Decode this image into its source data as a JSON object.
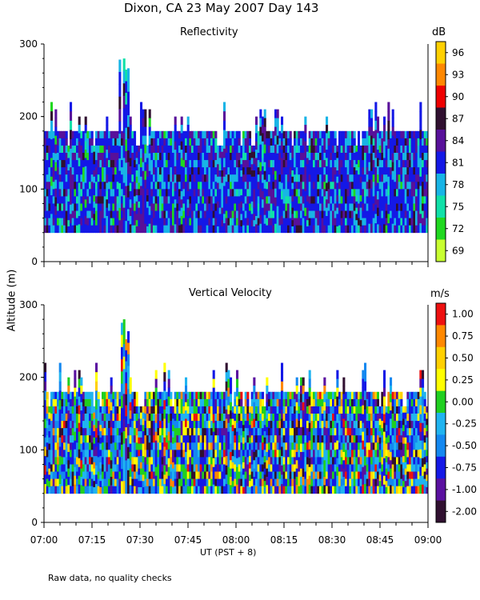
{
  "header": {
    "title": "Dixon, CA 23 May 2007  Day 143"
  },
  "footer": {
    "note": "Raw data, no quality checks"
  },
  "colors": {
    "background": "#ffffff",
    "axis": "#000000"
  },
  "chart_data": [
    {
      "type": "heatmap",
      "title": "Reflectivity",
      "xlabel": "UT  (PST + 8)",
      "ylabel": "Altitude (m)",
      "x_range": [
        "07:00",
        "09:00"
      ],
      "x_tick_labels": [
        "07:00",
        "07:15",
        "07:30",
        "07:45",
        "08:00",
        "08:15",
        "08:30",
        "08:45",
        "09:00"
      ],
      "ylim": [
        0,
        300
      ],
      "y_tick_labels": [
        "0",
        "100",
        "200",
        "300"
      ],
      "colorbar": {
        "unit": "dB",
        "labels": [
          "96",
          "93",
          "90",
          "87",
          "84",
          "81",
          "78",
          "75",
          "72",
          "69"
        ],
        "colors": [
          "#ffd000",
          "#ff8800",
          "#ee0000",
          "#301030",
          "#58109a",
          "#1418e6",
          "#18b4e6",
          "#10e0a8",
          "#20d820",
          "#c8ff30"
        ]
      },
      "echo_base_altitude_m": 40,
      "echo_top_typical_m": 180,
      "echo_top_max_m": 280,
      "dominant_values_db": [
        78,
        81,
        84
      ]
    },
    {
      "type": "heatmap",
      "title": "Vertical Velocity",
      "xlabel": "UT  (PST + 8)",
      "ylabel": "Altitude (m)",
      "x_range": [
        "07:00",
        "09:00"
      ],
      "x_tick_labels": [
        "07:00",
        "07:15",
        "07:30",
        "07:45",
        "08:00",
        "08:15",
        "08:30",
        "08:45",
        "09:00"
      ],
      "ylim": [
        0,
        300
      ],
      "y_tick_labels": [
        "0",
        "100",
        "200",
        "300"
      ],
      "colorbar": {
        "unit": "m/s",
        "labels": [
          "1.00",
          "0.75",
          "0.50",
          "0.25",
          "0.00",
          "-0.25",
          "-0.50",
          "-0.75",
          "-1.00",
          "-2.00"
        ],
        "colors": [
          "#ee1010",
          "#ff8800",
          "#ffd000",
          "#ffff00",
          "#20d020",
          "#20b4f0",
          "#1488f0",
          "#1418e6",
          "#5a10a0",
          "#301030"
        ]
      },
      "echo_base_altitude_m": 40,
      "echo_top_typical_m": 180,
      "echo_top_max_m": 280,
      "dominant_values_ms": [
        -0.25,
        -0.5,
        -0.75
      ]
    }
  ]
}
